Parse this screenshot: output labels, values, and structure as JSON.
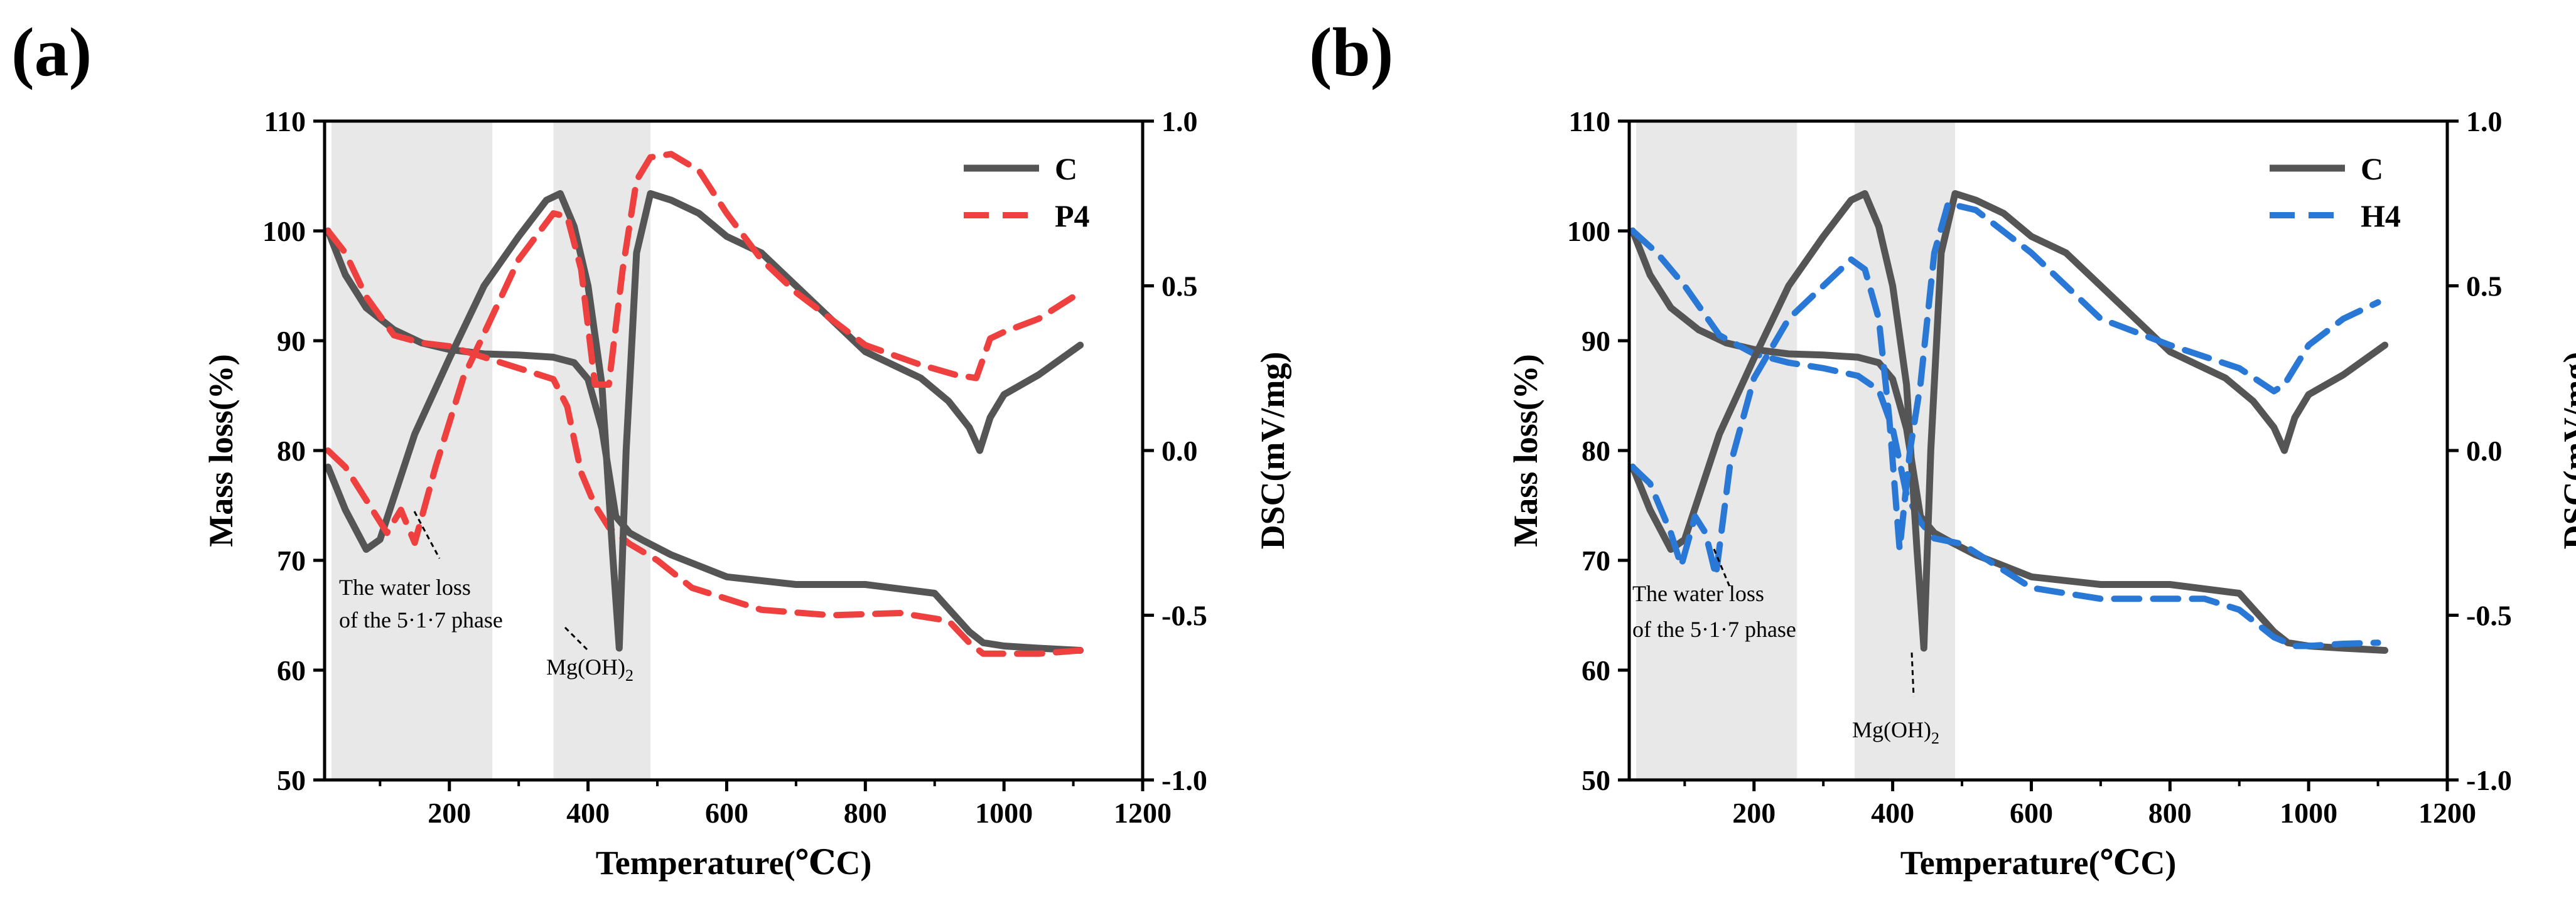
{
  "chart_data": [
    {
      "type": "line",
      "panel_label": "(a)",
      "xlabel": "Temperature(℃C)",
      "ylabel_left": "Mass loss(%)",
      "ylabel_right": "DSC(mV/mg)",
      "xlim": [
        20,
        1200
      ],
      "ylim_left": [
        50,
        110
      ],
      "ylim_right": [
        -1.0,
        1.0
      ],
      "x_ticks": [
        "200",
        "400",
        "600",
        "800",
        "1000",
        "1200"
      ],
      "y_left_ticks": [
        "50",
        "60",
        "70",
        "80",
        "90",
        "100",
        "110"
      ],
      "y_right_ticks": [
        "-1.0",
        "-0.5",
        "0.0",
        "0.5",
        "1.0"
      ],
      "shaded_regions": [
        [
          30,
          262
        ],
        [
          350,
          490
        ]
      ],
      "annotations": [
        {
          "line1": "The water loss",
          "line2": "of the 5·1·7 phase"
        },
        {
          "text": "Mg(OH)",
          "subscript": "2"
        }
      ],
      "series": [
        {
          "name": "C",
          "legend": "C",
          "axis": "left",
          "color": "#555555",
          "style": "solid",
          "x": [
            25,
            50,
            80,
            120,
            160,
            200,
            250,
            300,
            350,
            380,
            400,
            420,
            440,
            460,
            480,
            520,
            600,
            700,
            800,
            900,
            950,
            970,
            1000,
            1050,
            1110
          ],
          "y": [
            100,
            96,
            93,
            91,
            89.8,
            89.2,
            88.8,
            88.7,
            88.5,
            88,
            86.5,
            82,
            74,
            72.5,
            71.8,
            70.5,
            68.5,
            67.8,
            67.8,
            67,
            63.5,
            62.5,
            62.2,
            62,
            61.8
          ]
        },
        {
          "name": "P4",
          "legend": "P4",
          "axis": "left",
          "color": "#ef4040",
          "style": "dashed",
          "x": [
            25,
            50,
            80,
            120,
            160,
            200,
            250,
            300,
            350,
            370,
            390,
            410,
            430,
            460,
            500,
            550,
            650,
            750,
            850,
            920,
            950,
            970,
            1000,
            1050,
            1110
          ],
          "y": [
            100,
            98,
            94,
            90.5,
            89.8,
            89.5,
            88.5,
            87.5,
            86.5,
            84,
            78,
            75,
            73,
            71.5,
            70,
            67.5,
            65.5,
            65,
            65.2,
            64.5,
            62.5,
            61.5,
            61.5,
            61.5,
            61.8
          ]
        },
        {
          "name": "C DSC",
          "axis": "right",
          "color": "#555555",
          "style": "solid",
          "x": [
            25,
            50,
            80,
            100,
            150,
            200,
            250,
            300,
            340,
            360,
            380,
            400,
            420,
            435,
            445,
            455,
            470,
            490,
            520,
            560,
            600,
            650,
            700,
            800,
            880,
            920,
            950,
            965,
            980,
            1000,
            1050,
            1110
          ],
          "y": [
            -0.05,
            -0.18,
            -0.3,
            -0.27,
            0.05,
            0.28,
            0.5,
            0.65,
            0.76,
            0.78,
            0.68,
            0.5,
            0.2,
            -0.3,
            -0.6,
            0.0,
            0.6,
            0.78,
            0.76,
            0.72,
            0.65,
            0.6,
            0.5,
            0.3,
            0.22,
            0.15,
            0.07,
            0.0,
            0.1,
            0.17,
            0.23,
            0.32
          ]
        },
        {
          "name": "P4 DSC",
          "axis": "right",
          "color": "#ef4040",
          "style": "dashed",
          "x": [
            25,
            50,
            80,
            110,
            130,
            150,
            180,
            220,
            260,
            300,
            350,
            370,
            390,
            410,
            430,
            450,
            470,
            490,
            520,
            560,
            600,
            650,
            700,
            800,
            880,
            930,
            960,
            980,
            1000,
            1050,
            1110
          ],
          "y": [
            0.0,
            -0.05,
            -0.15,
            -0.25,
            -0.18,
            -0.28,
            -0.05,
            0.22,
            0.4,
            0.58,
            0.72,
            0.71,
            0.55,
            0.2,
            0.2,
            0.55,
            0.82,
            0.89,
            0.9,
            0.85,
            0.72,
            0.58,
            0.48,
            0.32,
            0.26,
            0.23,
            0.22,
            0.34,
            0.36,
            0.4,
            0.48
          ]
        }
      ]
    },
    {
      "type": "line",
      "panel_label": "(b)",
      "xlabel": "Temperature(℃C)",
      "ylabel_left": "Mass loss(%)",
      "ylabel_right": "DSC(mV/mg)",
      "xlim": [
        20,
        1200
      ],
      "ylim_left": [
        50,
        110
      ],
      "ylim_right": [
        -1.0,
        1.0
      ],
      "x_ticks": [
        "200",
        "400",
        "600",
        "800",
        "1000",
        "1200"
      ],
      "y_left_ticks": [
        "50",
        "60",
        "70",
        "80",
        "90",
        "100",
        "110"
      ],
      "y_right_ticks": [
        "-1.0",
        "-0.5",
        "0.0",
        "0.5",
        "1.0"
      ],
      "shaded_regions": [
        [
          30,
          262
        ],
        [
          345,
          490
        ]
      ],
      "annotations": [
        {
          "line1": "The water loss",
          "line2": "of the 5·1·7 phase"
        },
        {
          "text": "Mg(OH)",
          "subscript": "2"
        }
      ],
      "series": [
        {
          "name": "C",
          "legend": "C",
          "axis": "left",
          "color": "#555555",
          "style": "solid",
          "x": [
            25,
            50,
            80,
            120,
            160,
            200,
            250,
            300,
            350,
            380,
            400,
            420,
            440,
            460,
            480,
            520,
            600,
            700,
            800,
            900,
            950,
            970,
            1000,
            1050,
            1110
          ],
          "y": [
            100,
            96,
            93,
            91,
            89.8,
            89.2,
            88.8,
            88.7,
            88.5,
            88,
            86.5,
            82,
            74,
            72.5,
            71.8,
            70.5,
            68.5,
            67.8,
            67.8,
            67,
            63.5,
            62.5,
            62.2,
            62,
            61.8
          ]
        },
        {
          "name": "H4",
          "legend": "H4",
          "axis": "left",
          "color": "#2a78d6",
          "style": "dashed",
          "x": [
            25,
            60,
            100,
            150,
            200,
            250,
            300,
            350,
            380,
            400,
            420,
            440,
            460,
            500,
            600,
            700,
            800,
            850,
            900,
            950,
            980,
            1000,
            1050,
            1100
          ],
          "y": [
            100,
            98,
            95,
            90.5,
            88.8,
            88,
            87.5,
            86.8,
            85.5,
            82,
            76,
            73.5,
            72,
            71.5,
            67.5,
            66.5,
            66.5,
            66.5,
            65.5,
            63,
            62.2,
            62.2,
            62.4,
            62.5
          ]
        },
        {
          "name": "C DSC",
          "axis": "right",
          "color": "#555555",
          "style": "solid",
          "x": [
            25,
            50,
            80,
            100,
            150,
            200,
            250,
            300,
            340,
            360,
            380,
            400,
            420,
            435,
            445,
            455,
            470,
            490,
            520,
            560,
            600,
            650,
            700,
            800,
            880,
            920,
            950,
            965,
            980,
            1000,
            1050,
            1110
          ],
          "y": [
            -0.05,
            -0.18,
            -0.3,
            -0.27,
            0.05,
            0.28,
            0.5,
            0.65,
            0.76,
            0.78,
            0.68,
            0.5,
            0.2,
            -0.3,
            -0.6,
            0.0,
            0.6,
            0.78,
            0.76,
            0.72,
            0.65,
            0.6,
            0.5,
            0.3,
            0.22,
            0.15,
            0.07,
            0.0,
            0.1,
            0.17,
            0.23,
            0.32
          ]
        },
        {
          "name": "H4 DSC",
          "axis": "right",
          "color": "#2a78d6",
          "style": "dashed",
          "x": [
            25,
            50,
            80,
            95,
            115,
            130,
            145,
            165,
            200,
            250,
            300,
            340,
            360,
            380,
            395,
            410,
            425,
            440,
            460,
            480,
            520,
            600,
            700,
            800,
            900,
            950,
            965,
            1000,
            1050,
            1100
          ],
          "y": [
            -0.05,
            -0.1,
            -0.25,
            -0.35,
            -0.2,
            -0.25,
            -0.38,
            -0.05,
            0.22,
            0.4,
            0.5,
            0.58,
            0.55,
            0.4,
            0.1,
            -0.3,
            0.0,
            0.2,
            0.6,
            0.75,
            0.73,
            0.6,
            0.4,
            0.32,
            0.25,
            0.18,
            0.2,
            0.32,
            0.4,
            0.45
          ]
        }
      ]
    }
  ]
}
